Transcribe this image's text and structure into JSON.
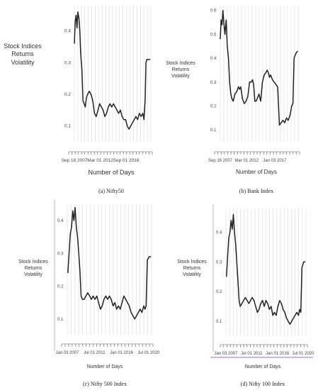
{
  "colors": {
    "line": "#222222",
    "grid": "#d8d8d8",
    "tick": "#555555",
    "underline": "#7b3fb5"
  },
  "chart_data": [
    {
      "type": "line",
      "caption": "(a) Nifty50",
      "ylabel": [
        "Stock Indices",
        "Returns",
        "Volatility"
      ],
      "xlabel": "Number of Days",
      "yticks": [
        0.1,
        0.2,
        0.3,
        0.4
      ],
      "ylim": [
        0.05,
        0.48
      ],
      "xlim": [
        2007.7,
        2021.0
      ],
      "xtick_labels": [
        {
          "x": 2007.7,
          "label": "Sep 18 2007"
        },
        {
          "x": 2012.2,
          "label": "Mar 01 2012"
        },
        {
          "x": 2016.7,
          "label": "Sep 01 2016"
        }
      ],
      "x": [
        2007.7,
        2007.85,
        2008.0,
        2008.15,
        2008.3,
        2008.5,
        2008.65,
        2008.8,
        2009.0,
        2009.2,
        2009.4,
        2009.6,
        2009.8,
        2010.0,
        2010.3,
        2010.6,
        2010.9,
        2011.2,
        2011.5,
        2011.8,
        2012.1,
        2012.4,
        2012.7,
        2013.0,
        2013.3,
        2013.6,
        2013.9,
        2014.2,
        2014.5,
        2014.8,
        2015.1,
        2015.4,
        2015.7,
        2016.0,
        2016.3,
        2016.6,
        2016.9,
        2017.2,
        2017.5,
        2017.8,
        2018.1,
        2018.4,
        2018.7,
        2019.0,
        2019.3,
        2019.6,
        2019.8,
        2020.0,
        2020.15,
        2020.3,
        2020.6,
        2020.9
      ],
      "y": [
        0.36,
        0.43,
        0.45,
        0.41,
        0.46,
        0.44,
        0.4,
        0.33,
        0.28,
        0.18,
        0.17,
        0.16,
        0.19,
        0.2,
        0.21,
        0.2,
        0.18,
        0.14,
        0.13,
        0.15,
        0.17,
        0.16,
        0.15,
        0.13,
        0.14,
        0.16,
        0.17,
        0.16,
        0.17,
        0.16,
        0.15,
        0.14,
        0.15,
        0.13,
        0.12,
        0.12,
        0.1,
        0.09,
        0.1,
        0.11,
        0.12,
        0.13,
        0.12,
        0.14,
        0.13,
        0.14,
        0.12,
        0.18,
        0.3,
        0.31,
        0.31,
        0.31
      ],
      "grid": "vertical"
    },
    {
      "type": "line",
      "caption": "(b) Bank Index",
      "ylabel": [
        "Stock Indices",
        "Returns",
        "Volatility"
      ],
      "xlabel": "Number of Days",
      "yticks": [
        0.1,
        0.2,
        0.3,
        0.4,
        0.5,
        0.6
      ],
      "ylim": [
        0.05,
        0.62
      ],
      "xlim": [
        2007.7,
        2021.0
      ],
      "xtick_labels": [
        {
          "x": 2007.7,
          "label": "Sep 16 2007"
        },
        {
          "x": 2012.2,
          "label": "Mar 01 2012"
        },
        {
          "x": 2017.0,
          "label": "Jan 03 2017"
        }
      ],
      "x": [
        2007.7,
        2007.85,
        2008.0,
        2008.15,
        2008.3,
        2008.5,
        2008.7,
        2008.9,
        2009.1,
        2009.3,
        2009.5,
        2009.7,
        2009.9,
        2010.2,
        2010.5,
        2010.8,
        2011.0,
        2011.2,
        2011.5,
        2011.8,
        2012.1,
        2012.4,
        2012.7,
        2013.0,
        2013.2,
        2013.4,
        2013.6,
        2013.8,
        2014.0,
        2014.3,
        2014.6,
        2014.9,
        2015.2,
        2015.5,
        2015.7,
        2015.9,
        2016.1,
        2016.3,
        2016.6,
        2016.9,
        2017.2,
        2017.5,
        2017.8,
        2018.1,
        2018.4,
        2018.7,
        2019.0,
        2019.3,
        2019.6,
        2019.9,
        2020.1,
        2020.3,
        2020.6,
        2020.9
      ],
      "y": [
        0.48,
        0.56,
        0.54,
        0.6,
        0.55,
        0.5,
        0.56,
        0.45,
        0.4,
        0.3,
        0.25,
        0.23,
        0.22,
        0.25,
        0.26,
        0.28,
        0.27,
        0.28,
        0.23,
        0.21,
        0.22,
        0.24,
        0.3,
        0.3,
        0.31,
        0.29,
        0.22,
        0.22,
        0.23,
        0.25,
        0.22,
        0.3,
        0.33,
        0.34,
        0.35,
        0.34,
        0.32,
        0.33,
        0.31,
        0.3,
        0.29,
        0.28,
        0.12,
        0.13,
        0.14,
        0.13,
        0.15,
        0.14,
        0.16,
        0.2,
        0.21,
        0.4,
        0.42,
        0.43
      ],
      "grid": "vertical"
    },
    {
      "type": "line",
      "caption": "(c) Nifty 500 Index",
      "ylabel": [
        "Stock Indices",
        "Returns",
        "Volatility"
      ],
      "xlabel": "Number of Days",
      "yticks": [
        0.1,
        0.2,
        0.3,
        0.4
      ],
      "ylim": [
        0.05,
        0.45
      ],
      "xlim": [
        2007.0,
        2021.0
      ],
      "xtick_labels": [
        {
          "x": 2007.0,
          "label": "Jan 03 2007"
        },
        {
          "x": 2011.5,
          "label": "Jul 01 2011"
        },
        {
          "x": 2016.0,
          "label": "Jan 01 2016"
        },
        {
          "x": 2020.5,
          "label": "Jul 01 2020"
        }
      ],
      "x": [
        2007.1,
        2007.3,
        2007.5,
        2007.7,
        2007.9,
        2008.1,
        2008.3,
        2008.5,
        2008.7,
        2008.9,
        2009.1,
        2009.3,
        2009.5,
        2009.8,
        2010.1,
        2010.4,
        2010.7,
        2011.0,
        2011.3,
        2011.6,
        2011.9,
        2012.2,
        2012.5,
        2012.8,
        2013.1,
        2013.4,
        2013.7,
        2014.0,
        2014.3,
        2014.6,
        2014.9,
        2015.2,
        2015.5,
        2015.8,
        2016.1,
        2016.4,
        2016.7,
        2017.0,
        2017.3,
        2017.6,
        2017.9,
        2018.2,
        2018.5,
        2018.8,
        2019.1,
        2019.4,
        2019.7,
        2019.9,
        2020.1,
        2020.3,
        2020.6,
        2020.9
      ],
      "y": [
        0.24,
        0.3,
        0.36,
        0.38,
        0.43,
        0.4,
        0.44,
        0.38,
        0.35,
        0.3,
        0.25,
        0.17,
        0.16,
        0.16,
        0.17,
        0.18,
        0.17,
        0.16,
        0.17,
        0.16,
        0.17,
        0.15,
        0.13,
        0.14,
        0.16,
        0.17,
        0.16,
        0.17,
        0.16,
        0.14,
        0.15,
        0.13,
        0.14,
        0.13,
        0.15,
        0.17,
        0.16,
        0.15,
        0.14,
        0.12,
        0.11,
        0.1,
        0.11,
        0.12,
        0.13,
        0.12,
        0.14,
        0.13,
        0.14,
        0.28,
        0.29,
        0.29
      ],
      "grid": "vertical"
    },
    {
      "type": "line",
      "caption": "(d) Nifty 100 Index",
      "ylabel": [
        "Stock Indices",
        "Returns",
        "Volatility"
      ],
      "xlabel": "Number of Days",
      "yticks": [
        0.1,
        0.2,
        0.3,
        0.4
      ],
      "ylim": [
        0.05,
        0.48
      ],
      "xlim": [
        2007.0,
        2021.0
      ],
      "xtick_labels": [
        {
          "x": 2007.0,
          "label": "Jan 03 2007"
        },
        {
          "x": 2011.5,
          "label": "Jul 01 2011"
        },
        {
          "x": 2016.0,
          "label": "Jan 01 2016"
        },
        {
          "x": 2020.5,
          "label": "Jul 01 2020"
        }
      ],
      "x": [
        2007.1,
        2007.3,
        2007.5,
        2007.7,
        2007.9,
        2008.1,
        2008.3,
        2008.5,
        2008.7,
        2008.9,
        2009.1,
        2009.3,
        2009.5,
        2009.8,
        2010.1,
        2010.4,
        2010.7,
        2011.0,
        2011.3,
        2011.6,
        2011.9,
        2012.2,
        2012.5,
        2012.8,
        2013.1,
        2013.4,
        2013.7,
        2014.0,
        2014.3,
        2014.6,
        2014.9,
        2015.2,
        2015.5,
        2015.8,
        2016.1,
        2016.4,
        2016.7,
        2017.0,
        2017.3,
        2017.6,
        2017.9,
        2018.2,
        2018.5,
        2018.8,
        2019.1,
        2019.4,
        2019.7,
        2019.9,
        2020.1,
        2020.3,
        2020.6,
        2020.9
      ],
      "y": [
        0.25,
        0.32,
        0.38,
        0.4,
        0.44,
        0.41,
        0.46,
        0.4,
        0.36,
        0.3,
        0.24,
        0.17,
        0.15,
        0.16,
        0.17,
        0.18,
        0.17,
        0.16,
        0.17,
        0.18,
        0.17,
        0.15,
        0.13,
        0.14,
        0.16,
        0.17,
        0.15,
        0.17,
        0.16,
        0.14,
        0.15,
        0.12,
        0.13,
        0.12,
        0.15,
        0.17,
        0.16,
        0.14,
        0.13,
        0.11,
        0.1,
        0.09,
        0.1,
        0.11,
        0.12,
        0.13,
        0.12,
        0.14,
        0.13,
        0.28,
        0.3,
        0.3
      ],
      "grid": "vertical"
    }
  ]
}
